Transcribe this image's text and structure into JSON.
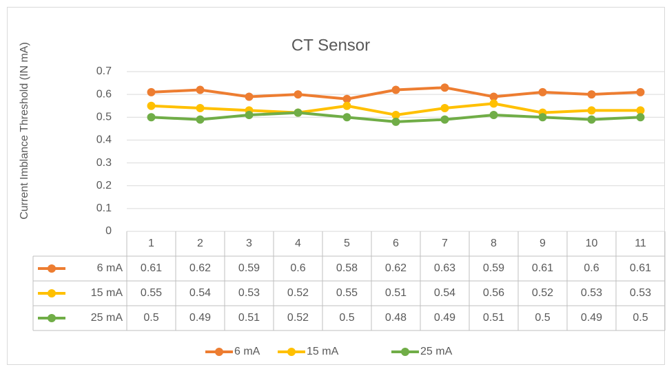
{
  "chart_data": {
    "type": "line",
    "title": "CT Sensor",
    "y_label": "Current Imblance Threshold (IN mA)",
    "categories": [
      "1",
      "2",
      "3",
      "4",
      "5",
      "6",
      "7",
      "8",
      "9",
      "10",
      "11"
    ],
    "series": [
      {
        "name": "6 mA",
        "color": "#ed7d31",
        "values": [
          0.61,
          0.62,
          0.59,
          0.6,
          0.58,
          0.62,
          0.63,
          0.59,
          0.61,
          0.6,
          0.61
        ]
      },
      {
        "name": "15 mA",
        "color": "#ffc000",
        "values": [
          0.55,
          0.54,
          0.53,
          0.52,
          0.55,
          0.51,
          0.54,
          0.56,
          0.52,
          0.53,
          0.53
        ]
      },
      {
        "name": "25 mA",
        "color": "#70ad47",
        "values": [
          0.5,
          0.49,
          0.51,
          0.52,
          0.5,
          0.48,
          0.49,
          0.51,
          0.5,
          0.49,
          0.5
        ]
      }
    ],
    "ylim": [
      0,
      0.7
    ],
    "yticks": [
      0,
      0.1,
      0.2,
      0.3,
      0.4,
      0.5,
      0.6,
      0.7
    ],
    "grid": true,
    "legend": "bottom",
    "data_table": true
  }
}
